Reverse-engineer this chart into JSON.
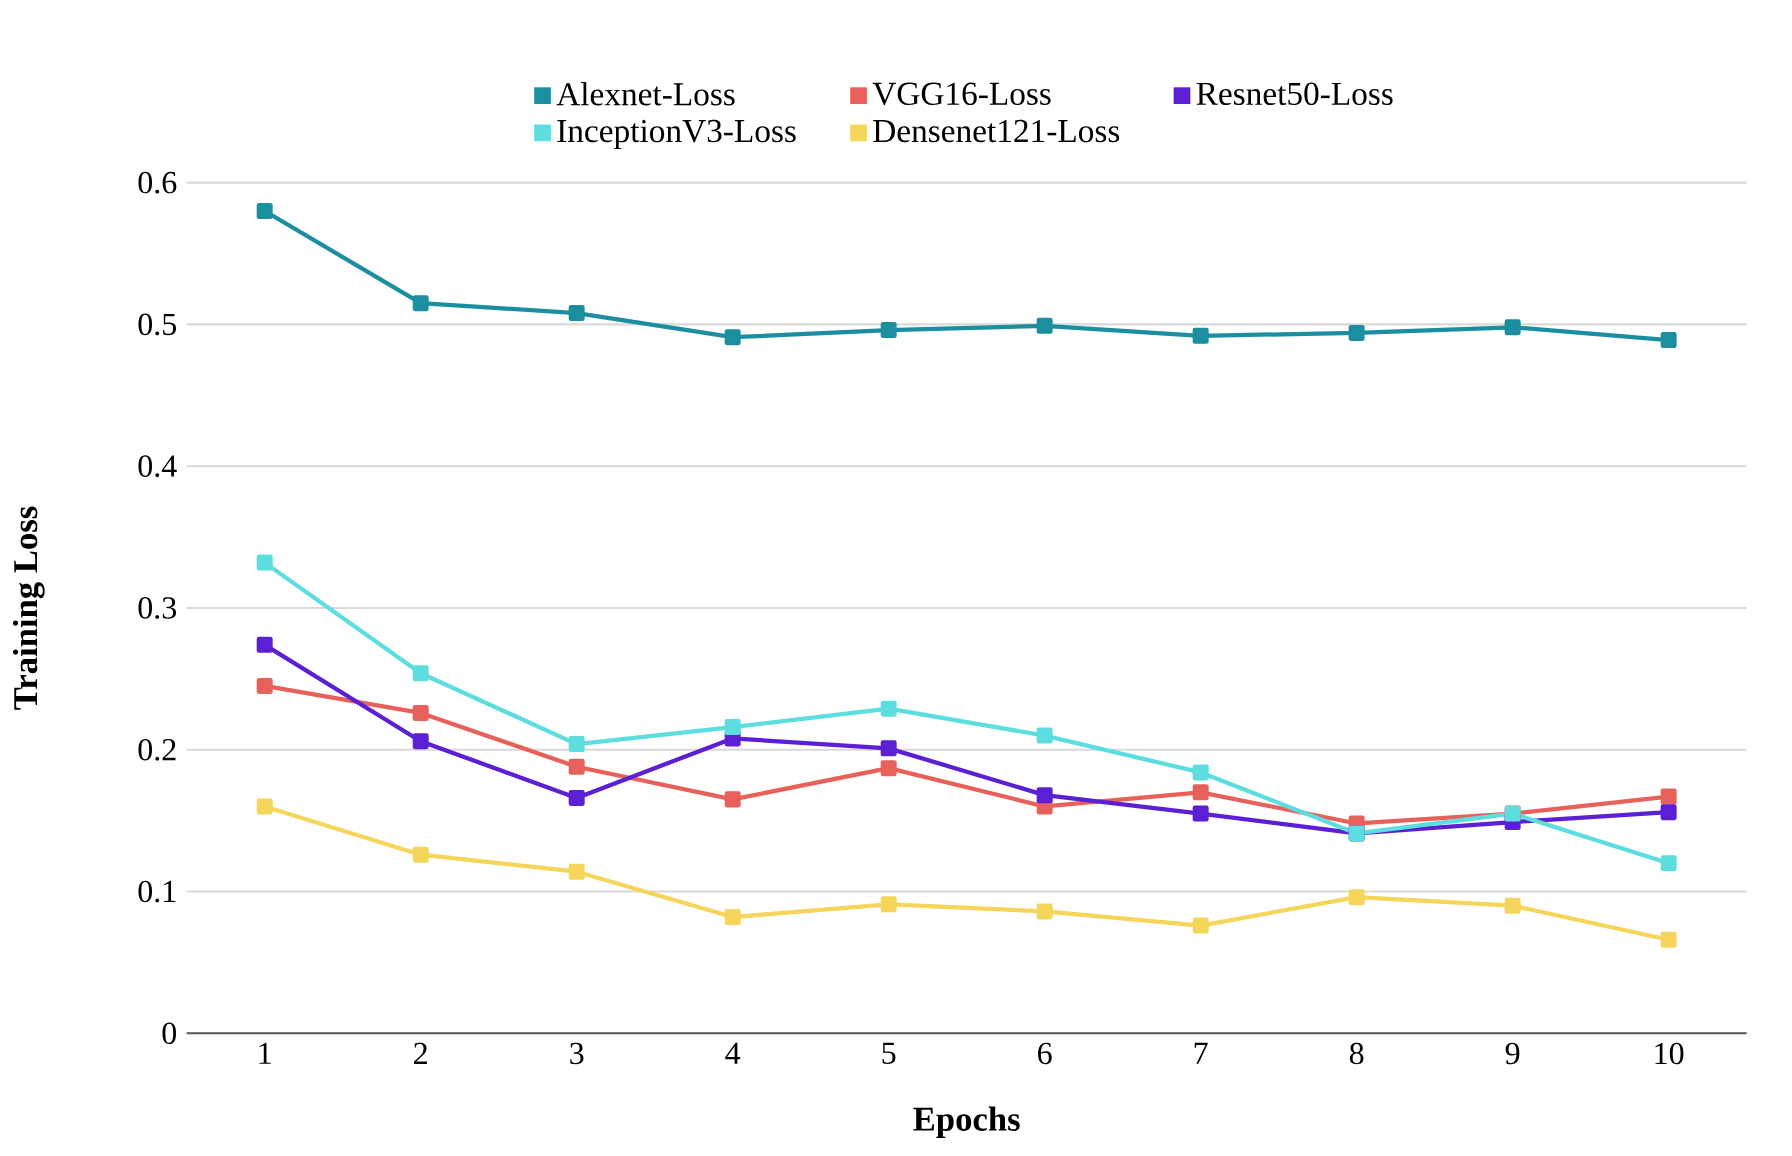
{
  "chart_data": {
    "type": "line",
    "xlabel": "Epochs",
    "ylabel": "Training Loss",
    "categories": [
      "1",
      "2",
      "3",
      "4",
      "5",
      "6",
      "7",
      "8",
      "9",
      "10"
    ],
    "series": [
      {
        "name": "Alexnet-Loss",
        "color": "#1b8fa0",
        "values": [
          0.58,
          0.515,
          0.508,
          0.491,
          0.496,
          0.499,
          0.492,
          0.494,
          0.498,
          0.489
        ]
      },
      {
        "name": "VGG16-Loss",
        "color": "#e8605a",
        "values": [
          0.245,
          0.226,
          0.188,
          0.165,
          0.187,
          0.16,
          0.17,
          0.148,
          0.155,
          0.167
        ]
      },
      {
        "name": "Resnet50-Loss",
        "color": "#5b1fd4",
        "values": [
          0.274,
          0.206,
          0.166,
          0.208,
          0.201,
          0.168,
          0.155,
          0.141,
          0.149,
          0.156
        ]
      },
      {
        "name": "InceptionV3-Loss",
        "color": "#5cdde0",
        "values": [
          0.332,
          0.254,
          0.204,
          0.216,
          0.229,
          0.21,
          0.184,
          0.141,
          0.155,
          0.12
        ]
      },
      {
        "name": "Densenet121-Loss",
        "color": "#f5d55a",
        "values": [
          0.16,
          0.126,
          0.114,
          0.082,
          0.091,
          0.086,
          0.076,
          0.096,
          0.09,
          0.066
        ]
      }
    ],
    "ylim": [
      0,
      0.6
    ],
    "yticks": [
      0,
      0.1,
      0.2,
      0.3,
      0.4,
      0.5,
      0.6
    ],
    "grid": "y",
    "legend": "top",
    "marker": "square",
    "line_style": "solid"
  }
}
